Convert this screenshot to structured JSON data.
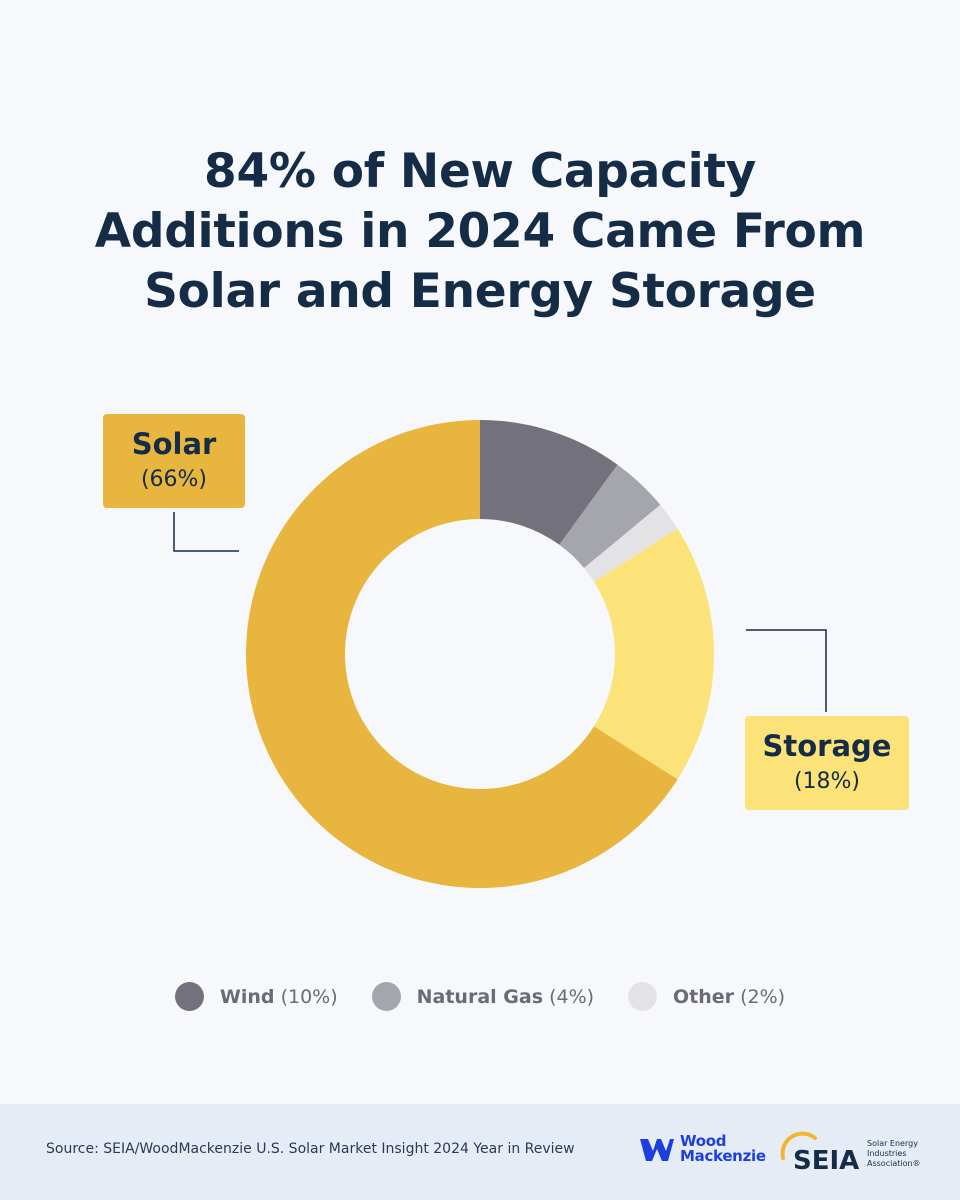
{
  "header": {
    "title_lines": [
      "84% of New Capacity",
      "Additions in 2024 Came From",
      "Solar and Energy Storage"
    ]
  },
  "chart_data": {
    "type": "pie",
    "title": "84% of New Capacity Additions in 2024 Came From Solar and Energy Storage",
    "categories": [
      "Wind",
      "Natural Gas",
      "Other",
      "Storage",
      "Solar"
    ],
    "values": [
      10,
      4,
      2,
      18,
      66
    ],
    "unit": "%",
    "colors": [
      "#73727c",
      "#a5a5ad",
      "#e3e3e6",
      "#fbe37a",
      "#e8b63f"
    ],
    "style": "donut",
    "callouts": {
      "solar": {
        "name": "Solar",
        "pct": "(66%)"
      },
      "storage": {
        "name": "Storage",
        "pct": "(18%)"
      }
    },
    "legend": [
      {
        "name": "Wind",
        "pct": "(10%)",
        "color": "#73727c"
      },
      {
        "name": "Natural Gas",
        "pct": "(4%)",
        "color": "#a5a5ad"
      },
      {
        "name": "Other",
        "pct": "(2%)",
        "color": "#e3e3e6"
      }
    ]
  },
  "footer": {
    "source": "Source: SEIA/WoodMackenzie U.S. Solar Market Insight 2024 Year in Review",
    "wood_mackenzie": {
      "line1": "Wood",
      "line2": "Mackenzie",
      "icon": "wood-mackenzie-logo-icon",
      "color": "#1d3fe0"
    },
    "seia": {
      "name": "SEIA",
      "tagline_lines": [
        "Solar Energy",
        "Industries",
        "Association®"
      ],
      "accent": "#f2b531"
    }
  }
}
